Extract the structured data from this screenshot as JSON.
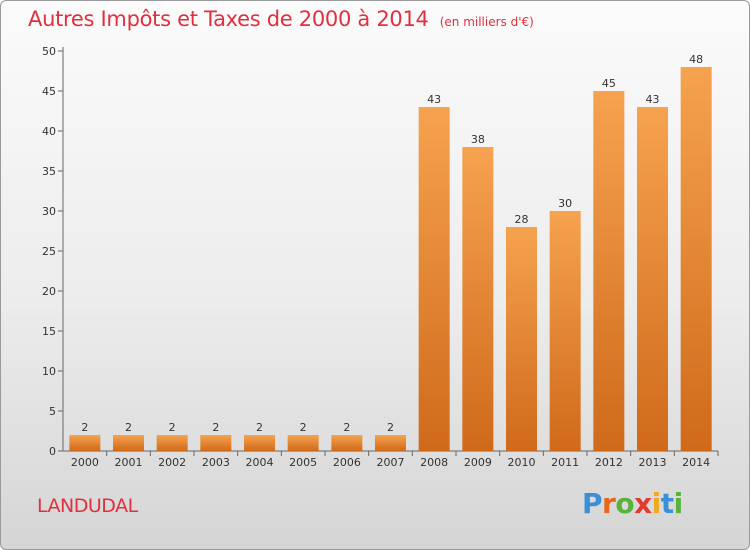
{
  "title": "Autres Impôts et Taxes de 2000 à 2014",
  "subtitle": "(en milliers d'€)",
  "commune": "LANDUDAL",
  "logo": {
    "letters": [
      {
        "char": "P",
        "color": "#3a8fd6"
      },
      {
        "char": "r",
        "color": "#e5671b"
      },
      {
        "char": "o",
        "color": "#59b23a"
      },
      {
        "char": "x",
        "color": "#e03b2e"
      },
      {
        "char": "i",
        "color": "#f2a81d"
      },
      {
        "char": "t",
        "color": "#3a8fd6"
      },
      {
        "char": "i",
        "color": "#59b23a"
      }
    ]
  },
  "colors": {
    "title": "#e0303e",
    "bar_top": "#f6a24f",
    "bar_bottom": "#cf6a1a"
  },
  "chart_data": {
    "type": "bar",
    "categories": [
      "2000",
      "2001",
      "2002",
      "2003",
      "2004",
      "2005",
      "2006",
      "2007",
      "2008",
      "2009",
      "2010",
      "2011",
      "2012",
      "2013",
      "2014"
    ],
    "values": [
      2,
      2,
      2,
      2,
      2,
      2,
      2,
      2,
      43,
      38,
      28,
      30,
      45,
      43,
      48
    ],
    "ylim": [
      0,
      50
    ],
    "yticks": [
      0,
      5,
      10,
      15,
      20,
      25,
      30,
      35,
      40,
      45,
      50
    ],
    "grid": false,
    "legend": "none"
  }
}
